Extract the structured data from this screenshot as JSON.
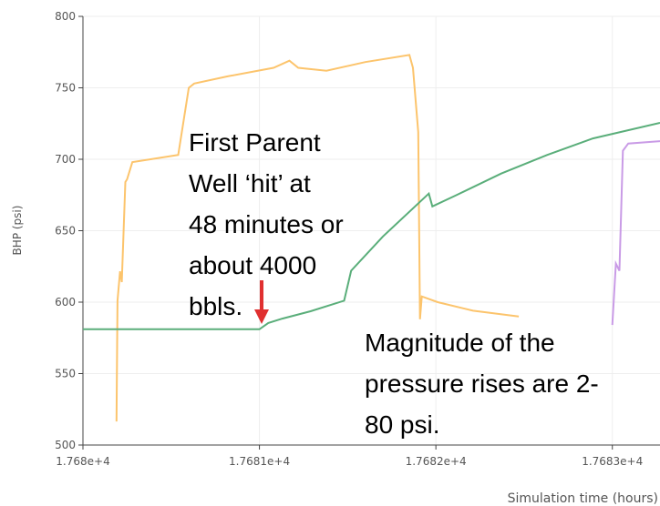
{
  "chart_data": {
    "type": "line",
    "xlabel": "Simulation time (hours)",
    "ylabel": "BHP (psi)",
    "xlim": [
      17680,
      17683.27
    ],
    "ylim": [
      500,
      800
    ],
    "xticks": [
      {
        "value": 17680,
        "label": "1.768e+4"
      },
      {
        "value": 17681,
        "label": "1.7681e+4"
      },
      {
        "value": 17682,
        "label": "1.7682e+4"
      },
      {
        "value": 17683,
        "label": "1.7683e+4"
      }
    ],
    "yticks": [
      500,
      550,
      600,
      650,
      700,
      750,
      800
    ],
    "grid": true,
    "series": [
      {
        "color": "#fcc46c",
        "x": [
          17680.19,
          17680.196,
          17680.21,
          17680.22,
          17680.24,
          17680.25,
          17680.28,
          17680.54,
          17680.6,
          17680.63,
          17680.82,
          17681.08,
          17681.17,
          17681.22,
          17681.38,
          17681.6,
          17681.85,
          17681.87,
          17681.9,
          17681.91,
          17681.92,
          17682.01,
          17682.21,
          17682.47
        ],
        "values": [
          516.5,
          601,
          621.6,
          614,
          684,
          686,
          698,
          703,
          750,
          753,
          758,
          764,
          769,
          764,
          762,
          768,
          773,
          764,
          719,
          588,
          604,
          600,
          594,
          590
        ]
      },
      {
        "color": "#5aae7a",
        "x": [
          17680,
          17681.0,
          17681.05,
          17681.13,
          17681.29,
          17681.48,
          17681.52,
          17681.7,
          17681.96,
          17681.98,
          17682.11,
          17682.37,
          17682.63,
          17682.89,
          17683.27
        ],
        "values": [
          581,
          581,
          585.4,
          588.5,
          593.6,
          601,
          622,
          646,
          676,
          667,
          674.5,
          690,
          703,
          714.6,
          725.5
        ]
      },
      {
        "color": "#c99be6",
        "x": [
          17683.0,
          17683.02,
          17683.04,
          17683.06,
          17683.09,
          17683.27
        ],
        "values": [
          584,
          627,
          622,
          706,
          711,
          712.7
        ]
      }
    ],
    "annotations": [
      {
        "lines": [
          "First Parent",
          "Well ‘hit’ at",
          "48 minutes or",
          "about 4000",
          "bbls."
        ]
      },
      {
        "lines": [
          "Magnitude of the",
          "pressure rises are 2-",
          "80 psi."
        ]
      }
    ]
  }
}
